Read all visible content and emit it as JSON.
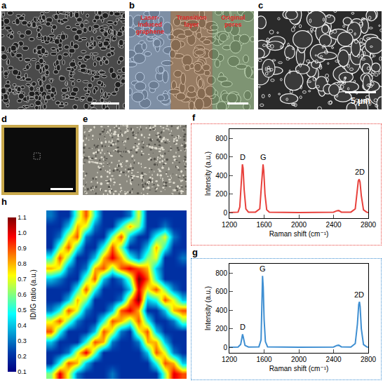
{
  "images": [
    {
      "label": "a"
    },
    {
      "label": "b",
      "regions": [
        "Laser-induced graphene",
        "Transition layer",
        "Original pores"
      ]
    },
    {
      "label": "c",
      "scale_bar": "5 μm"
    },
    {
      "label": "d"
    },
    {
      "label": "e"
    }
  ],
  "chart_data": [
    {
      "label": "f",
      "type": "line",
      "xlabel": "Raman shift (cm⁻¹)",
      "ylabel": "Intensity (a.u.)",
      "xlim": [
        1200,
        2800
      ],
      "xticks": [
        1200,
        1600,
        2000,
        2400,
        2800
      ],
      "ylim": [
        -60,
        900
      ],
      "yticks": [
        0,
        200,
        400,
        600,
        800
      ],
      "grid": false,
      "x": [
        1200,
        1300,
        1320,
        1335,
        1345,
        1350,
        1358,
        1370,
        1390,
        1420,
        1500,
        1550,
        1570,
        1580,
        1588,
        1596,
        1610,
        1630,
        1660,
        2000,
        2400,
        2440,
        2460,
        2490,
        2600,
        2650,
        2670,
        2685,
        2695,
        2705,
        2720,
        2745,
        2780,
        2800
      ],
      "series": [
        {
          "color": "#e8413c",
          "values": [
            0,
            5,
            60,
            300,
            480,
            520,
            480,
            250,
            40,
            5,
            5,
            40,
            300,
            480,
            520,
            450,
            200,
            30,
            5,
            0,
            5,
            20,
            22,
            5,
            5,
            40,
            200,
            340,
            360,
            330,
            180,
            30,
            5,
            0
          ]
        }
      ],
      "annotations": [
        {
          "text": "D",
          "x": 1350,
          "y": 540
        },
        {
          "text": "G",
          "x": 1590,
          "y": 540
        },
        {
          "text": "2D",
          "x": 2700,
          "y": 380
        }
      ]
    },
    {
      "label": "g",
      "type": "line",
      "xlabel": "Raman shift (cm⁻¹)",
      "ylabel": "Intensity (a.u.)",
      "xlim": [
        1200,
        2800
      ],
      "xticks": [
        1200,
        1600,
        2000,
        2400,
        2800
      ],
      "ylim": [
        -60,
        900
      ],
      "yticks": [
        0,
        200,
        400,
        600,
        800
      ],
      "grid": false,
      "x": [
        1200,
        1300,
        1330,
        1345,
        1352,
        1360,
        1380,
        1420,
        1540,
        1565,
        1575,
        1582,
        1590,
        1600,
        1615,
        1640,
        2000,
        2400,
        2440,
        2460,
        2490,
        2600,
        2650,
        2675,
        2690,
        2698,
        2706,
        2720,
        2745,
        2780,
        2800
      ],
      "series": [
        {
          "color": "#3f8fd2",
          "values": [
            0,
            3,
            30,
            120,
            140,
            110,
            20,
            3,
            5,
            80,
            400,
            770,
            650,
            300,
            60,
            5,
            0,
            3,
            20,
            22,
            5,
            3,
            40,
            250,
            460,
            490,
            440,
            200,
            30,
            5,
            0
          ]
        }
      ],
      "annotations": [
        {
          "text": "D",
          "x": 1352,
          "y": 160
        },
        {
          "text": "G",
          "x": 1582,
          "y": 790
        },
        {
          "text": "2D",
          "x": 2698,
          "y": 510
        }
      ]
    },
    {
      "label": "h",
      "type": "heatmap",
      "tick_labels": false,
      "colorbar": {
        "title": "ID/IG ratio (a.u.)",
        "range": [
          0.1,
          1.1
        ],
        "ticks": [
          0.1,
          0.2,
          0.3,
          0.4,
          0.5,
          0.6,
          0.7,
          0.8,
          0.9,
          {
            "value": 1,
            "label": "1.0"
          },
          1.1
        ]
      },
      "cells": [
        [
          0.3,
          0.2,
          0.2,
          0.6,
          0.9,
          0.5,
          0.2,
          0.2,
          0.2,
          0.3,
          0.7,
          0.2,
          0.2,
          0.2,
          0.2,
          0.2
        ],
        [
          0.2,
          0.2,
          0.4,
          0.8,
          0.7,
          0.3,
          0.2,
          0.2,
          0.5,
          0.8,
          0.6,
          0.2,
          0.2,
          0.3,
          0.2,
          0.2
        ],
        [
          0.2,
          0.3,
          0.7,
          0.9,
          0.3,
          0.2,
          0.2,
          0.6,
          0.9,
          0.4,
          0.2,
          0.2,
          0.5,
          0.7,
          0.3,
          0.2
        ],
        [
          0.2,
          0.6,
          0.9,
          0.5,
          0.2,
          0.2,
          0.5,
          0.9,
          0.6,
          0.2,
          0.2,
          0.4,
          0.8,
          0.5,
          0.2,
          0.2
        ],
        [
          0.5,
          0.9,
          0.6,
          0.2,
          0.2,
          0.4,
          0.8,
          1.0,
          0.8,
          0.5,
          0.3,
          0.6,
          0.7,
          0.2,
          0.2,
          0.3
        ],
        [
          0.8,
          0.7,
          0.3,
          0.2,
          0.3,
          0.8,
          0.9,
          0.6,
          0.9,
          1.0,
          0.9,
          0.8,
          0.4,
          0.2,
          0.2,
          0.2
        ],
        [
          0.4,
          0.3,
          0.2,
          0.2,
          0.6,
          0.9,
          0.4,
          0.2,
          0.3,
          0.6,
          1.1,
          0.9,
          0.5,
          0.2,
          0.2,
          0.2
        ],
        [
          0.2,
          0.2,
          0.2,
          0.5,
          0.9,
          0.5,
          0.2,
          0.2,
          0.2,
          0.4,
          1.0,
          0.7,
          0.9,
          0.6,
          0.3,
          0.2
        ],
        [
          0.2,
          0.2,
          0.4,
          0.8,
          0.6,
          0.2,
          0.2,
          0.2,
          0.3,
          0.8,
          1.1,
          0.4,
          0.5,
          0.9,
          0.7,
          0.4
        ],
        [
          0.3,
          0.5,
          0.9,
          0.7,
          0.3,
          0.2,
          0.2,
          0.4,
          0.9,
          1.0,
          0.8,
          0.2,
          0.2,
          0.4,
          0.8,
          0.9
        ],
        [
          0.7,
          0.9,
          0.6,
          0.3,
          0.2,
          0.2,
          0.5,
          0.9,
          0.8,
          0.6,
          0.9,
          0.5,
          0.2,
          0.2,
          0.3,
          0.6
        ],
        [
          0.9,
          0.5,
          0.2,
          0.2,
          0.2,
          0.4,
          0.9,
          0.7,
          0.3,
          0.2,
          0.7,
          0.9,
          0.4,
          0.2,
          0.2,
          0.2
        ],
        [
          0.4,
          0.2,
          0.2,
          0.2,
          0.5,
          0.9,
          0.8,
          0.3,
          0.2,
          0.2,
          0.3,
          0.8,
          0.8,
          0.4,
          0.2,
          0.2
        ],
        [
          0.2,
          0.2,
          0.3,
          0.7,
          1.0,
          0.6,
          0.2,
          0.2,
          0.2,
          0.2,
          0.2,
          0.4,
          0.9,
          0.7,
          0.3,
          0.2
        ],
        [
          0.2,
          0.5,
          0.9,
          0.8,
          0.4,
          0.2,
          0.2,
          0.2,
          0.2,
          0.2,
          0.2,
          0.2,
          0.5,
          0.9,
          0.8,
          0.4
        ],
        [
          0.6,
          1.0,
          0.7,
          0.3,
          0.2,
          0.2,
          0.2,
          0.3,
          0.2,
          0.2,
          0.2,
          0.2,
          0.2,
          0.6,
          1.0,
          0.9
        ]
      ]
    }
  ]
}
